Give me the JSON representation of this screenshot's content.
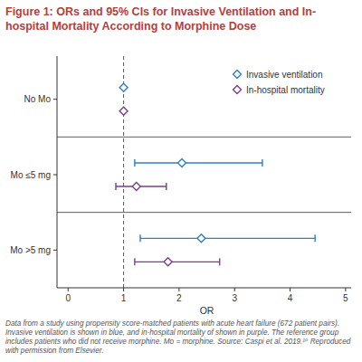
{
  "chart_data": {
    "type": "forest",
    "title": "Figure 1: ORs and 95% CIs for Invasive Ventilation and In-hospital Mortality According to Morphine Dose",
    "caption": "Data from a study using propensity score-matched patients with acute heart failure (672 patient pairs). Invasive ventilation is shown in blue, and in-hospital mortality of shown in purple. The reference group includes patients who did not receive morphine. Mo = morphine. Source: Caspi et al. 2019.¹⁰ Reproduced with permission from Elsevier.",
    "categories": [
      "No Mo",
      "Mo ≤5 mg",
      "Mo >5 mg"
    ],
    "series": [
      {
        "name": "Invasive ventilation",
        "color": "#2f7fc1",
        "marker": "diamond",
        "values": [
          1,
          2.05,
          2.4
        ],
        "lower": [
          null,
          1.2,
          1.3
        ],
        "upper": [
          null,
          3.5,
          4.45
        ]
      },
      {
        "name": "In-hospital mortality",
        "color": "#7d3c8c",
        "marker": "diamond",
        "values": [
          1,
          1.23,
          1.8
        ],
        "lower": [
          null,
          0.86,
          1.2
        ],
        "upper": [
          null,
          1.77,
          2.73
        ]
      }
    ],
    "orientation": "horizontal",
    "xlim": [
      -0.2,
      5.1
    ],
    "xticks": [
      0,
      1,
      2,
      3,
      4,
      5
    ],
    "x_label": "OR",
    "reference_line": 1,
    "legend": "upper right"
  }
}
